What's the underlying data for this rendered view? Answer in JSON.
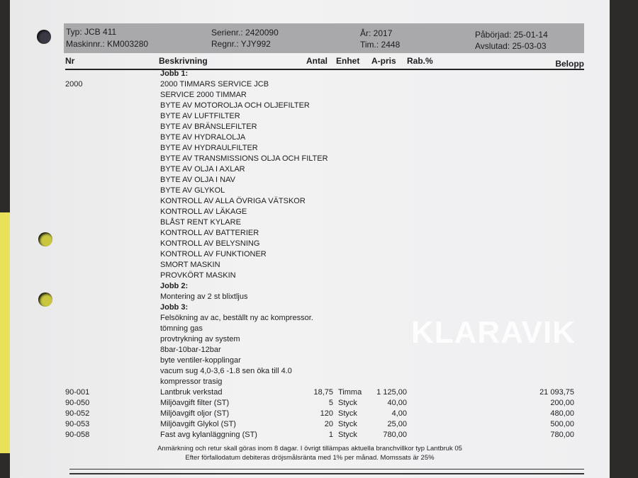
{
  "header": {
    "typ": "Typ: JCB 411",
    "maskinnr": "Maskinnr.: KM003280",
    "serienr": "Serienr.: 2420090",
    "regnr": "Regnr.: YJY992",
    "ar": "År: 2017",
    "tim": "Tim.: 2448",
    "paborjad": "Påbörjad: 25-01-14",
    "avslutad": "Avslutad: 25-03-03"
  },
  "columns": {
    "nr": "Nr",
    "beskrivning": "Beskrivning",
    "antal": "Antal",
    "enhet": "Enhet",
    "apris": "A-pris",
    "rab": "Rab.%",
    "belopp": "Belopp"
  },
  "lines": [
    {
      "nr": "",
      "desc": "Jobb 1:",
      "bold": true
    },
    {
      "nr": "2000",
      "desc": "2000 TIMMARS SERVICE JCB"
    },
    {
      "desc": "SERVICE 2000 TIMMAR"
    },
    {
      "desc": "BYTE AV MOTOROLJA OCH OLJEFILTER"
    },
    {
      "desc": "BYTE AV LUFTFILTER"
    },
    {
      "desc": "BYTE AV BRÄNSLEFILTER"
    },
    {
      "desc": "BYTE AV HYDRALOLJA"
    },
    {
      "desc": "BYTE AV HYDRAULFILTER"
    },
    {
      "desc": "BYTE AV TRANSMISSIONS OLJA OCH FILTER"
    },
    {
      "desc": "BYTE AV OLJA I AXLAR"
    },
    {
      "desc": "BYTE AV OLJA I NAV"
    },
    {
      "desc": "BYTE AV GLYKOL"
    },
    {
      "desc": "KONTROLL AV ALLA ÖVRIGA VÄTSKOR"
    },
    {
      "desc": "KONTROLL AV LÄKAGE"
    },
    {
      "desc": "BLÅST RENT KYLARE"
    },
    {
      "desc": "KONTROLL AV BATTERIER"
    },
    {
      "desc": "KONTROLL AV BELYSNING"
    },
    {
      "desc": "KONTROLL AV FUNKTIONER"
    },
    {
      "desc": "SMORT MASKIN"
    },
    {
      "desc": "PROVKÖRT MASKIN"
    },
    {
      "desc": "Jobb 2:",
      "bold": true
    },
    {
      "desc": "Montering av 2 st blixtljus"
    },
    {
      "desc": "Jobb 3:",
      "bold": true
    },
    {
      "desc": "Felsökning av ac, beställt ny ac kompressor."
    },
    {
      "desc": "tömning gas"
    },
    {
      "desc": "provtrykning av system"
    },
    {
      "desc": "8bar-10bar-12bar"
    },
    {
      "desc": "byte ventiler-kopplingar"
    },
    {
      "desc": "vacum sug 4,0-3,6 -1.8 sen öka till 4.0"
    },
    {
      "desc": "kompressor trasig"
    },
    {
      "nr": "90-001",
      "desc": "Lantbruk verkstad",
      "qty": "18,75",
      "unit": "Timma",
      "price": "1 125,00",
      "amount": "21 093,75"
    },
    {
      "nr": "90-050",
      "desc": "Miljöavgift filter (ST)",
      "qty": "5",
      "unit": "Styck",
      "price": "40,00",
      "amount": "200,00"
    },
    {
      "nr": "90-052",
      "desc": "Miljöavgift oljor (ST)",
      "qty": "120",
      "unit": "Styck",
      "price": "4,00",
      "amount": "480,00"
    },
    {
      "nr": "90-053",
      "desc": "Miljöavgift Glykol (ST)",
      "qty": "20",
      "unit": "Styck",
      "price": "25,00",
      "amount": "500,00"
    },
    {
      "nr": "90-058",
      "desc": "Fast avg kylanläggning (ST)",
      "qty": "1",
      "unit": "Styck",
      "price": "780,00",
      "amount": "780,00"
    }
  ],
  "footer": {
    "line1": "Anmärkning och retur skall göras inom 8 dagar.  I övrigt tillämpas aktuella branchvillkor typ Lantbruk 05",
    "line2": "Efter förfallodatum debiteras dröjsmålsränta med 1% per månad. Momssats är 25%"
  },
  "watermark": "KLARAVIK"
}
